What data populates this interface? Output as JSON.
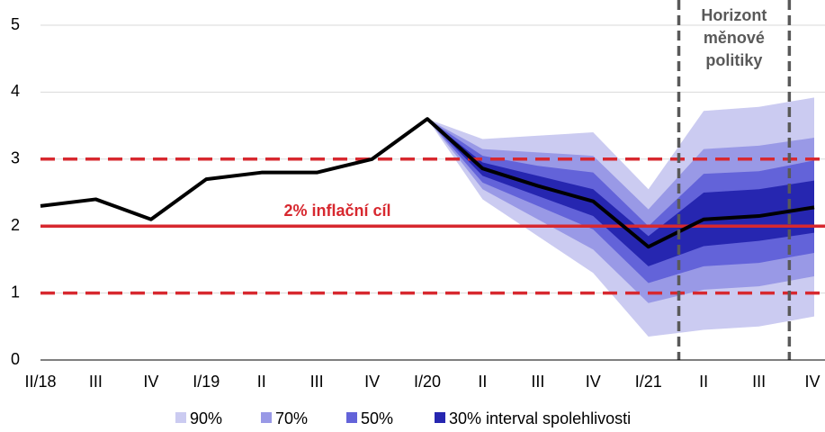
{
  "chart_data": {
    "type": "fan",
    "categories": [
      "II/18",
      "III",
      "IV",
      "I/19",
      "II",
      "III",
      "IV",
      "I/20",
      "II",
      "III",
      "IV",
      "I/21",
      "II",
      "III",
      "IV"
    ],
    "ylim": [
      0,
      5
    ],
    "yticks": [
      0,
      1,
      2,
      3,
      4,
      5
    ],
    "grid": true,
    "line": {
      "color": "#000000",
      "values": [
        2.3,
        2.4,
        2.1,
        2.7,
        2.8,
        2.8,
        3.0,
        3.6,
        2.86,
        2.6,
        2.37,
        1.69,
        2.1,
        2.15,
        2.28
      ]
    },
    "bands": [
      {
        "name": "90%",
        "color": "#cbcbf1",
        "upper": [
          null,
          null,
          null,
          null,
          null,
          null,
          null,
          3.6,
          3.3,
          3.35,
          3.4,
          2.55,
          3.72,
          3.78,
          3.92
        ],
        "lower": [
          null,
          null,
          null,
          null,
          null,
          null,
          null,
          3.6,
          2.4,
          1.85,
          1.3,
          0.35,
          0.45,
          0.5,
          0.65
        ]
      },
      {
        "name": "70%",
        "color": "#9999e6",
        "upper": [
          null,
          null,
          null,
          null,
          null,
          null,
          null,
          3.6,
          3.15,
          3.1,
          3.05,
          2.25,
          3.15,
          3.2,
          3.32
        ],
        "lower": [
          null,
          null,
          null,
          null,
          null,
          null,
          null,
          3.6,
          2.55,
          2.1,
          1.65,
          0.85,
          1.05,
          1.1,
          1.25
        ]
      },
      {
        "name": "50%",
        "color": "#6363d9",
        "upper": [
          null,
          null,
          null,
          null,
          null,
          null,
          null,
          3.6,
          3.05,
          2.9,
          2.8,
          2.0,
          2.78,
          2.82,
          2.98
        ],
        "lower": [
          null,
          null,
          null,
          null,
          null,
          null,
          null,
          3.6,
          2.65,
          2.3,
          1.95,
          1.15,
          1.4,
          1.45,
          1.6
        ]
      },
      {
        "name": "30% interval spolehlivosti",
        "color": "#2626b0",
        "upper": [
          null,
          null,
          null,
          null,
          null,
          null,
          null,
          3.6,
          2.95,
          2.75,
          2.55,
          1.85,
          2.5,
          2.55,
          2.68
        ],
        "lower": [
          null,
          null,
          null,
          null,
          null,
          null,
          null,
          3.6,
          2.75,
          2.45,
          2.15,
          1.4,
          1.7,
          1.78,
          1.9
        ]
      }
    ],
    "target": {
      "value": 2,
      "label": "2% inflační cíl",
      "color": "#d7282f"
    },
    "tolerance": {
      "values": [
        1,
        3
      ],
      "color": "#d7282f"
    },
    "horizon": {
      "lines": [
        "Horizont",
        "měnové",
        "politiky"
      ],
      "x": [
        11.55,
        13.55
      ],
      "color": "#595959"
    }
  }
}
